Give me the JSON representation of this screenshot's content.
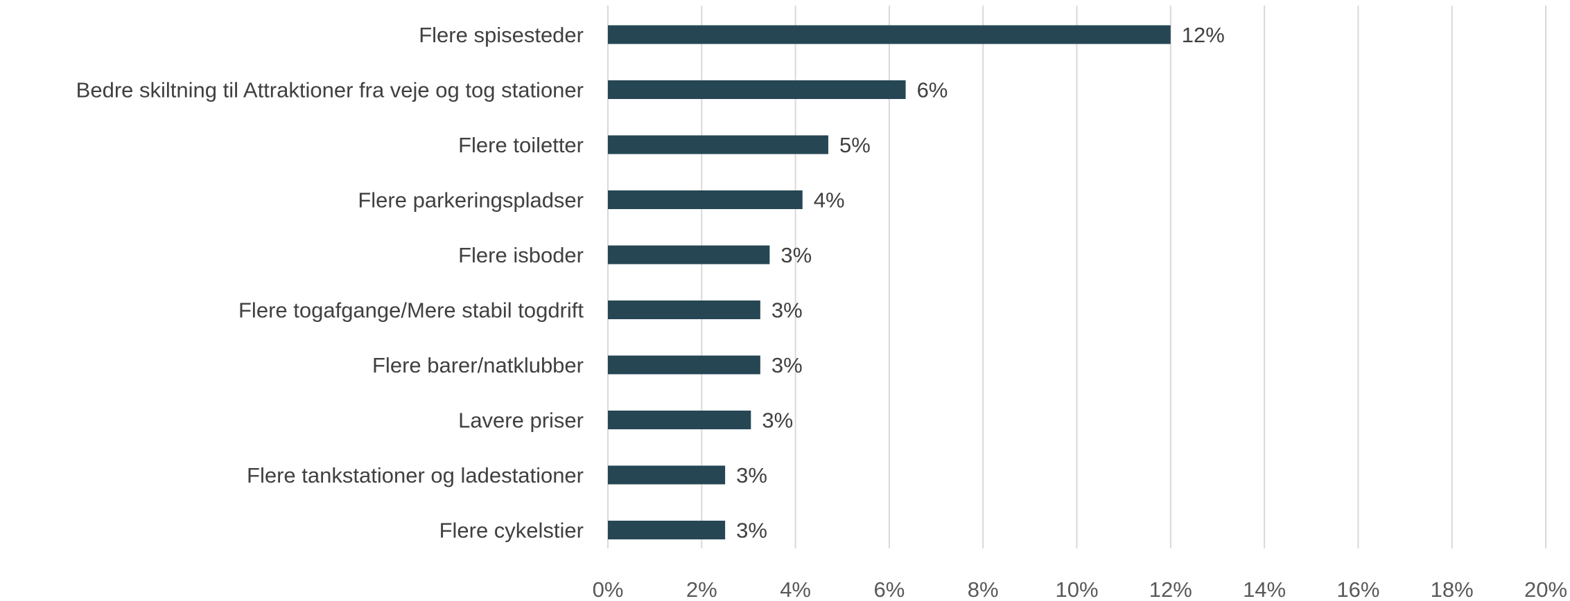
{
  "chart_data": {
    "type": "bar",
    "orientation": "horizontal",
    "title": "",
    "xlabel": "",
    "ylabel": "",
    "categories": [
      "Flere spisesteder",
      "Bedre skiltning til Attraktioner fra veje og tog stationer",
      "Flere toiletter",
      "Flere parkeringspladser",
      "Flere isboder",
      "Flere togafgange/Mere stabil togdrift",
      "Flere barer/natklubber",
      "Lavere priser",
      "Flere tankstationer og ladestationer",
      "Flere cykelstier"
    ],
    "values": [
      12.0,
      6.35,
      4.7,
      4.15,
      3.45,
      3.25,
      3.25,
      3.05,
      2.5,
      2.5
    ],
    "data_labels": [
      "12%",
      "6%",
      "5%",
      "4%",
      "3%",
      "3%",
      "3%",
      "3%",
      "3%",
      "3%"
    ],
    "xlim": [
      0,
      20
    ],
    "xticks": [
      0,
      2,
      4,
      6,
      8,
      10,
      12,
      14,
      16,
      18,
      20
    ],
    "xtick_labels": [
      "0%",
      "2%",
      "4%",
      "6%",
      "8%",
      "10%",
      "12%",
      "14%",
      "16%",
      "18%",
      "20%"
    ],
    "grid": true,
    "bar_color": "#264653"
  }
}
